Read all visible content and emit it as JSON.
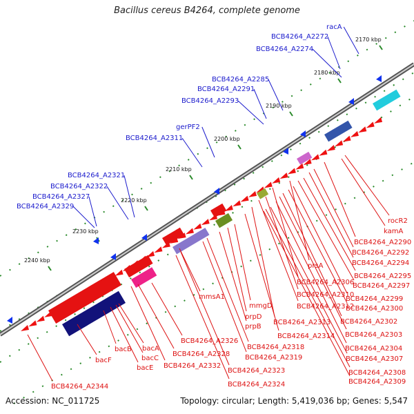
{
  "title": "Bacillus cereus B4264, complete genome",
  "footer": {
    "accession": "Accession: NC_011725",
    "summary": "Topology: circular; Length: 5,419,036 bp; Genes: 5,547"
  },
  "colors": {
    "forward_label": "#1a1acc",
    "reverse_label": "#dd1111",
    "backbone": "#666666",
    "tick_mark": "#2a8a2a",
    "forward_arrow": "#1133ee",
    "reverse_arrow": "#ee1111"
  },
  "ticks": [
    "2170 kbp",
    "2180 kbp",
    "2190 kbp",
    "2200 kbp",
    "2210 kbp",
    "2220 kbp",
    "2230 kbp",
    "2240 kbp"
  ],
  "forward_labels": [
    "racA",
    "BCB4264_A2272",
    "BCB4264_A2274",
    "BCB4264_A2285",
    "BCB4264_A2291",
    "BCB4264_A2293",
    "gerPF2",
    "BCB4264_A2311",
    "BCB4264_A2321",
    "BCB4264_A2322",
    "BCB4264_A2327",
    "BCB4264_A2329"
  ],
  "reverse_labels": [
    "rocR2",
    "kamA",
    "BCB4264_A2290",
    "BCB4264_A2292",
    "BCB4264_A2294",
    "prsA",
    "BCB4264_A2295",
    "BCB4264_A2297",
    "BCB4264_A2306",
    "BCB4264_A2310",
    "BCB4264_A2299",
    "BCB4264_A2312",
    "BCB4264_A2300",
    "mmsA1",
    "mmgD",
    "prpD",
    "prpB",
    "BCB4264_A2313",
    "BCB4264_A2302",
    "BCB4264_A2314",
    "BCB4264_A2303",
    "BCB4264_A2318",
    "BCB4264_A2304",
    "BCB4264_A2319",
    "BCB4264_A2307",
    "BCB4264_A2308",
    "BCB4264_A2309",
    "BCB4264_A2323",
    "BCB4264_A2324",
    "BCB4264_A2326",
    "BCB4264_A2328",
    "BCB4264_A2332",
    "bacA",
    "bacB",
    "bacC",
    "bacE",
    "bacF",
    "BCB4264_A2344"
  ]
}
